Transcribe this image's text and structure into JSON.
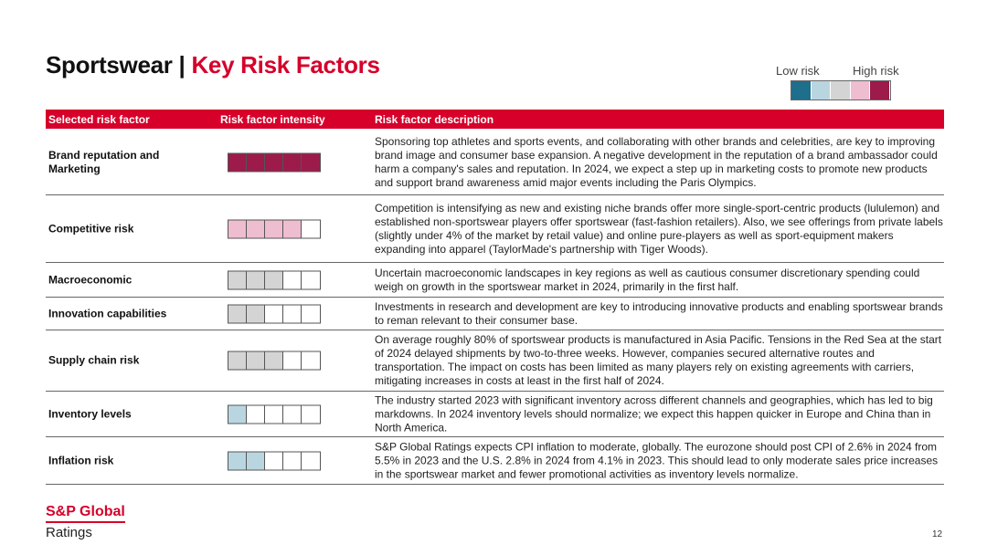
{
  "header": {
    "title_prefix": "Sportswear |",
    "title_highlight": "Key Risk Factors"
  },
  "legend": {
    "low": "Low risk",
    "high": "High risk",
    "colors": [
      "#1d6f8c",
      "#b9d6e0",
      "#d4d4d4",
      "#efbdd0",
      "#9c1b4b"
    ]
  },
  "table": {
    "columns": [
      "Selected risk factor",
      "Risk factor intensity",
      "Risk factor description"
    ],
    "rows": [
      {
        "factor": "Brand reputation and Marketing",
        "intensity": 5,
        "color": "#9c1b4b",
        "description": "Sponsoring top athletes and sports events, and collaborating with other brands and celebrities, are key to improving brand image and consumer base expansion. A negative development in the reputation of a brand ambassador could harm a company's sales and reputation. In 2024, we expect a step up in marketing costs to promote new products and support brand awareness amid major events including the Paris Olympics."
      },
      {
        "factor": "Competitive risk",
        "intensity": 4,
        "color": "#efbdd0",
        "description": "Competition is intensifying as new and existing niche brands offer more single-sport-centric products (lululemon) and established non-sportswear players offer sportswear (fast-fashion retailers). Also, we see offerings from private labels (slightly under 4% of the market by retail value) and online pure-players as well as sport-equipment makers expanding into apparel (TaylorMade's partnership with Tiger Woods)."
      },
      {
        "factor": "Macroeconomic",
        "intensity": 3,
        "color": "#d4d4d4",
        "description": "Uncertain macroeconomic landscapes in key regions as well as cautious consumer discretionary spending could weigh on growth in the sportswear market in 2024, primarily in the first half."
      },
      {
        "factor": "Innovation capabilities",
        "intensity": 2,
        "color": "#d4d4d4",
        "description": "Investments in research and development are key to introducing innovative products and enabling sportswear brands to reman relevant to their consumer base."
      },
      {
        "factor": "Supply chain risk",
        "intensity": 3,
        "color": "#d4d4d4",
        "description": "On average roughly 80% of sportswear products is manufactured in Asia Pacific. Tensions in the Red Sea at the start of 2024 delayed shipments by two-to-three weeks. However, companies secured alternative routes and transportation. The impact on costs has been limited as many players rely on existing agreements with carriers, mitigating increases in costs at least in the first half of 2024."
      },
      {
        "factor": "Inventory levels",
        "intensity": 1,
        "color": "#b9d6e0",
        "description": "The industry started 2023 with significant inventory across different channels and geographies, which has led to big markdowns. In 2024 inventory levels should normalize; we expect this happen quicker in Europe and China than in North America."
      },
      {
        "factor": "Inflation risk",
        "intensity": 2,
        "color": "#b9d6e0",
        "description": "S&P Global Ratings expects CPI inflation to moderate, globally. The eurozone should post CPI of 2.6% in 2024 from 5.5% in 2023 and the U.S. 2.8% in 2024 from 4.1% in 2023. This should lead to only moderate sales price increases in the sportswear market and fewer promotional activities as inventory levels normalize."
      }
    ]
  },
  "footer": {
    "brand": "S&P Global",
    "sub": "Ratings",
    "page": "12"
  }
}
